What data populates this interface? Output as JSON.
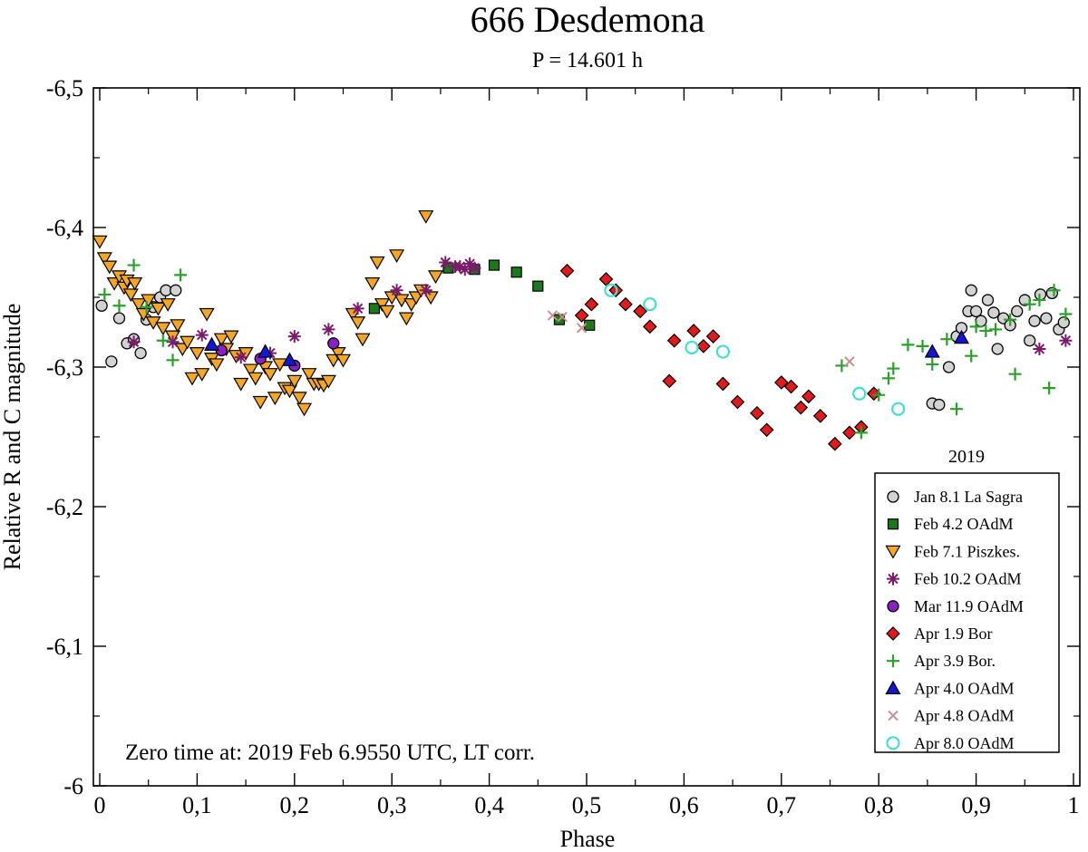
{
  "chart_data": {
    "type": "scatter",
    "title": "666 Desdemona",
    "subtitle": "P = 14.601 h",
    "xlabel": "Phase",
    "ylabel": "Relative R and C magnitude",
    "xlim": [
      0,
      1
    ],
    "ylim": [
      -6.5,
      -6.0
    ],
    "y_inverted": true,
    "x_ticks": [
      {
        "value": 0,
        "label": "0"
      },
      {
        "value": 0.1,
        "label": "0,1"
      },
      {
        "value": 0.2,
        "label": "0,2"
      },
      {
        "value": 0.3,
        "label": "0,3"
      },
      {
        "value": 0.4,
        "label": "0,4"
      },
      {
        "value": 0.5,
        "label": "0,5"
      },
      {
        "value": 0.6,
        "label": "0,6"
      },
      {
        "value": 0.7,
        "label": "0,7"
      },
      {
        "value": 0.8,
        "label": "0,8"
      },
      {
        "value": 0.9,
        "label": "0,9"
      },
      {
        "value": 1,
        "label": "1"
      }
    ],
    "y_ticks": [
      {
        "value": -6.5,
        "label": "-6,5"
      },
      {
        "value": -6.4,
        "label": "-6,4"
      },
      {
        "value": -6.3,
        "label": "-6,3"
      },
      {
        "value": -6.2,
        "label": "-6,2"
      },
      {
        "value": -6.1,
        "label": "-6,1"
      },
      {
        "value": -6.0,
        "label": "-6"
      }
    ],
    "legend_title": "2019",
    "legend_position": "bottom-right",
    "annotation": "Zero time at: 2019 Feb 6.9550 UTC, LT corr.",
    "series": [
      {
        "name": "Jan 8.1 La Sagra",
        "marker": "circle",
        "fill": "#d3d3d3",
        "stroke": "#000000",
        "points": [
          [
            0.002,
            -6.344
          ],
          [
            0.012,
            -6.304
          ],
          [
            0.02,
            -6.335
          ],
          [
            0.028,
            -6.317
          ],
          [
            0.035,
            -6.32
          ],
          [
            0.042,
            -6.31
          ],
          [
            0.048,
            -6.334
          ],
          [
            0.055,
            -6.343
          ],
          [
            0.062,
            -6.35
          ],
          [
            0.068,
            -6.355
          ],
          [
            0.078,
            -6.355
          ],
          [
            0.855,
            -6.274
          ],
          [
            0.862,
            -6.273
          ],
          [
            0.872,
            -6.3
          ],
          [
            0.88,
            -6.322
          ],
          [
            0.885,
            -6.328
          ],
          [
            0.892,
            -6.34
          ],
          [
            0.895,
            -6.355
          ],
          [
            0.9,
            -6.34
          ],
          [
            0.905,
            -6.333
          ],
          [
            0.912,
            -6.348
          ],
          [
            0.918,
            -6.339
          ],
          [
            0.922,
            -6.313
          ],
          [
            0.928,
            -6.335
          ],
          [
            0.935,
            -6.33
          ],
          [
            0.942,
            -6.34
          ],
          [
            0.95,
            -6.348
          ],
          [
            0.955,
            -6.319
          ],
          [
            0.96,
            -6.333
          ],
          [
            0.966,
            -6.352
          ],
          [
            0.972,
            -6.335
          ],
          [
            0.978,
            -6.353
          ],
          [
            0.985,
            -6.327
          ],
          [
            0.99,
            -6.332
          ]
        ]
      },
      {
        "name": "Feb 4.2 OAdM",
        "marker": "square",
        "fill": "#1a7a1a",
        "stroke": "#000000",
        "points": [
          [
            0.282,
            -6.342
          ],
          [
            0.358,
            -6.371
          ],
          [
            0.385,
            -6.37
          ],
          [
            0.405,
            -6.373
          ],
          [
            0.428,
            -6.368
          ],
          [
            0.45,
            -6.358
          ],
          [
            0.472,
            -6.334
          ],
          [
            0.503,
            -6.33
          ]
        ]
      },
      {
        "name": "Feb 7.1 Piszkes.",
        "marker": "triangle-down",
        "fill": "#f5a623",
        "stroke": "#000000",
        "points": [
          [
            0.0,
            -6.39
          ],
          [
            0.005,
            -6.378
          ],
          [
            0.01,
            -6.372
          ],
          [
            0.015,
            -6.36
          ],
          [
            0.02,
            -6.365
          ],
          [
            0.025,
            -6.357
          ],
          [
            0.028,
            -6.362
          ],
          [
            0.032,
            -6.352
          ],
          [
            0.036,
            -6.36
          ],
          [
            0.04,
            -6.345
          ],
          [
            0.045,
            -6.338
          ],
          [
            0.05,
            -6.348
          ],
          [
            0.055,
            -6.332
          ],
          [
            0.06,
            -6.342
          ],
          [
            0.065,
            -6.328
          ],
          [
            0.07,
            -6.345
          ],
          [
            0.075,
            -6.322
          ],
          [
            0.08,
            -6.33
          ],
          [
            0.085,
            -6.313
          ],
          [
            0.09,
            -6.318
          ],
          [
            0.095,
            -6.292
          ],
          [
            0.1,
            -6.31
          ],
          [
            0.105,
            -6.295
          ],
          [
            0.11,
            -6.338
          ],
          [
            0.115,
            -6.306
          ],
          [
            0.12,
            -6.302
          ],
          [
            0.125,
            -6.32
          ],
          [
            0.13,
            -6.313
          ],
          [
            0.135,
            -6.322
          ],
          [
            0.14,
            -6.308
          ],
          [
            0.145,
            -6.288
          ],
          [
            0.15,
            -6.31
          ],
          [
            0.155,
            -6.298
          ],
          [
            0.16,
            -6.292
          ],
          [
            0.165,
            -6.275
          ],
          [
            0.17,
            -6.3
          ],
          [
            0.175,
            -6.295
          ],
          [
            0.18,
            -6.278
          ],
          [
            0.185,
            -6.302
          ],
          [
            0.19,
            -6.285
          ],
          [
            0.195,
            -6.283
          ],
          [
            0.2,
            -6.29
          ],
          [
            0.205,
            -6.278
          ],
          [
            0.21,
            -6.27
          ],
          [
            0.215,
            -6.295
          ],
          [
            0.22,
            -6.288
          ],
          [
            0.225,
            -6.288
          ],
          [
            0.23,
            -6.287
          ],
          [
            0.235,
            -6.29
          ],
          [
            0.24,
            -6.305
          ],
          [
            0.245,
            -6.31
          ],
          [
            0.25,
            -6.305
          ],
          [
            0.26,
            -6.338
          ],
          [
            0.265,
            -6.332
          ],
          [
            0.27,
            -6.32
          ],
          [
            0.28,
            -6.36
          ],
          [
            0.285,
            -6.375
          ],
          [
            0.29,
            -6.345
          ],
          [
            0.295,
            -6.34
          ],
          [
            0.3,
            -6.35
          ],
          [
            0.305,
            -6.38
          ],
          [
            0.31,
            -6.348
          ],
          [
            0.315,
            -6.335
          ],
          [
            0.32,
            -6.345
          ],
          [
            0.325,
            -6.35
          ],
          [
            0.33,
            -6.355
          ],
          [
            0.335,
            -6.408
          ],
          [
            0.34,
            -6.35
          ],
          [
            0.345,
            -6.365
          ]
        ]
      },
      {
        "name": "Feb 10.2 OAdM",
        "marker": "asterisk",
        "fill": "#7b1c6a",
        "stroke": "#7b1c6a",
        "points": [
          [
            0.035,
            -6.318
          ],
          [
            0.075,
            -6.318
          ],
          [
            0.105,
            -6.323
          ],
          [
            0.145,
            -6.307
          ],
          [
            0.175,
            -6.31
          ],
          [
            0.2,
            -6.322
          ],
          [
            0.235,
            -6.327
          ],
          [
            0.265,
            -6.342
          ],
          [
            0.305,
            -6.355
          ],
          [
            0.335,
            -6.355
          ],
          [
            0.355,
            -6.375
          ],
          [
            0.365,
            -6.372
          ],
          [
            0.37,
            -6.372
          ],
          [
            0.375,
            -6.37
          ],
          [
            0.38,
            -6.374
          ],
          [
            0.385,
            -6.371
          ],
          [
            0.965,
            -6.313
          ],
          [
            0.992,
            -6.319
          ]
        ]
      },
      {
        "name": "Mar 11.9 OAdM",
        "marker": "circle",
        "fill": "#8a1fc4",
        "stroke": "#000000",
        "points": [
          [
            0.125,
            -6.312
          ],
          [
            0.165,
            -6.306
          ],
          [
            0.2,
            -6.301
          ],
          [
            0.24,
            -6.317
          ]
        ]
      },
      {
        "name": "Apr 1.9 Bor",
        "marker": "diamond",
        "fill": "#e31a1c",
        "stroke": "#000000",
        "points": [
          [
            0.48,
            -6.369
          ],
          [
            0.495,
            -6.337
          ],
          [
            0.505,
            -6.345
          ],
          [
            0.52,
            -6.363
          ],
          [
            0.53,
            -6.355
          ],
          [
            0.54,
            -6.345
          ],
          [
            0.555,
            -6.34
          ],
          [
            0.565,
            -6.329
          ],
          [
            0.585,
            -6.29
          ],
          [
            0.59,
            -6.319
          ],
          [
            0.61,
            -6.326
          ],
          [
            0.62,
            -6.315
          ],
          [
            0.63,
            -6.322
          ],
          [
            0.64,
            -6.288
          ],
          [
            0.655,
            -6.275
          ],
          [
            0.675,
            -6.267
          ],
          [
            0.685,
            -6.255
          ],
          [
            0.7,
            -6.289
          ],
          [
            0.71,
            -6.286
          ],
          [
            0.72,
            -6.271
          ],
          [
            0.728,
            -6.279
          ],
          [
            0.74,
            -6.265
          ],
          [
            0.755,
            -6.245
          ],
          [
            0.77,
            -6.253
          ],
          [
            0.782,
            -6.257
          ],
          [
            0.795,
            -6.281
          ]
        ]
      },
      {
        "name": "Apr 3.9 Bor.",
        "marker": "plus",
        "fill": "#2aa02a",
        "stroke": "#2aa02a",
        "points": [
          [
            0.005,
            -6.352
          ],
          [
            0.02,
            -6.344
          ],
          [
            0.035,
            -6.373
          ],
          [
            0.048,
            -6.343
          ],
          [
            0.065,
            -6.319
          ],
          [
            0.075,
            -6.305
          ],
          [
            0.083,
            -6.366
          ],
          [
            0.762,
            -6.301
          ],
          [
            0.782,
            -6.253
          ],
          [
            0.8,
            -6.28
          ],
          [
            0.81,
            -6.292
          ],
          [
            0.815,
            -6.299
          ],
          [
            0.83,
            -6.316
          ],
          [
            0.845,
            -6.315
          ],
          [
            0.855,
            -6.302
          ],
          [
            0.87,
            -6.32
          ],
          [
            0.88,
            -6.27
          ],
          [
            0.895,
            -6.308
          ],
          [
            0.9,
            -6.329
          ],
          [
            0.91,
            -6.326
          ],
          [
            0.92,
            -6.327
          ],
          [
            0.935,
            -6.334
          ],
          [
            0.94,
            -6.295
          ],
          [
            0.955,
            -6.345
          ],
          [
            0.965,
            -6.348
          ],
          [
            0.975,
            -6.285
          ],
          [
            0.98,
            -6.355
          ],
          [
            0.992,
            -6.338
          ]
        ]
      },
      {
        "name": "Apr 4.0 OAdM",
        "marker": "triangle-up",
        "fill": "#1515d6",
        "stroke": "#000000",
        "points": [
          [
            0.115,
            -6.316
          ],
          [
            0.17,
            -6.311
          ],
          [
            0.195,
            -6.305
          ],
          [
            0.855,
            -6.311
          ],
          [
            0.885,
            -6.321
          ]
        ]
      },
      {
        "name": "Apr 4.8 OAdM",
        "marker": "cross",
        "fill": "#c89090",
        "stroke": "#c89090",
        "points": [
          [
            0.465,
            -6.337
          ],
          [
            0.475,
            -6.336
          ],
          [
            0.495,
            -6.328
          ],
          [
            0.77,
            -6.304
          ]
        ]
      },
      {
        "name": "Apr 8.0 OAdM",
        "marker": "open-circle",
        "fill": "none",
        "stroke": "#40e0d0",
        "points": [
          [
            0.525,
            -6.355
          ],
          [
            0.565,
            -6.345
          ],
          [
            0.608,
            -6.314
          ],
          [
            0.64,
            -6.311
          ],
          [
            0.78,
            -6.281
          ],
          [
            0.82,
            -6.27
          ]
        ]
      }
    ]
  }
}
